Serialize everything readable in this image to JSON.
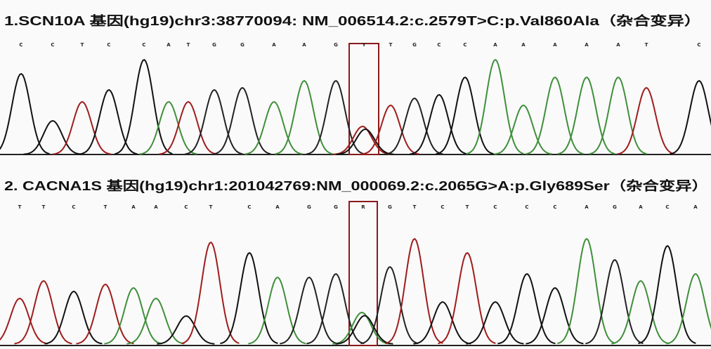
{
  "panels": [
    {
      "title": "1.SCN10A 基因(hg19)chr3:38770094: NM_006514.2:c.2579T>C:p.Val860Ala（杂合变异）",
      "bases": [
        "C",
        "C",
        "T",
        "C",
        "C",
        "A",
        "T",
        "G",
        "G",
        "A",
        "A",
        "G",
        "Y",
        "T",
        "G",
        "C",
        "C",
        "A",
        "A",
        "A",
        "A",
        "A",
        "T",
        "C"
      ]
    },
    {
      "title": "2. CACNA1S 基因(hg19)chr1:201042769:NM_000069.2:c.2065G>A:p.Gly689Ser（杂合变异）",
      "bases": [
        "T",
        "T",
        "C",
        "T",
        "A",
        "A",
        "C",
        "T",
        "C",
        "A",
        "G",
        "G",
        "R",
        "G",
        "T",
        "C",
        "T",
        "C",
        "C",
        "C",
        "A",
        "G",
        "A",
        "C",
        "A"
      ]
    }
  ]
}
